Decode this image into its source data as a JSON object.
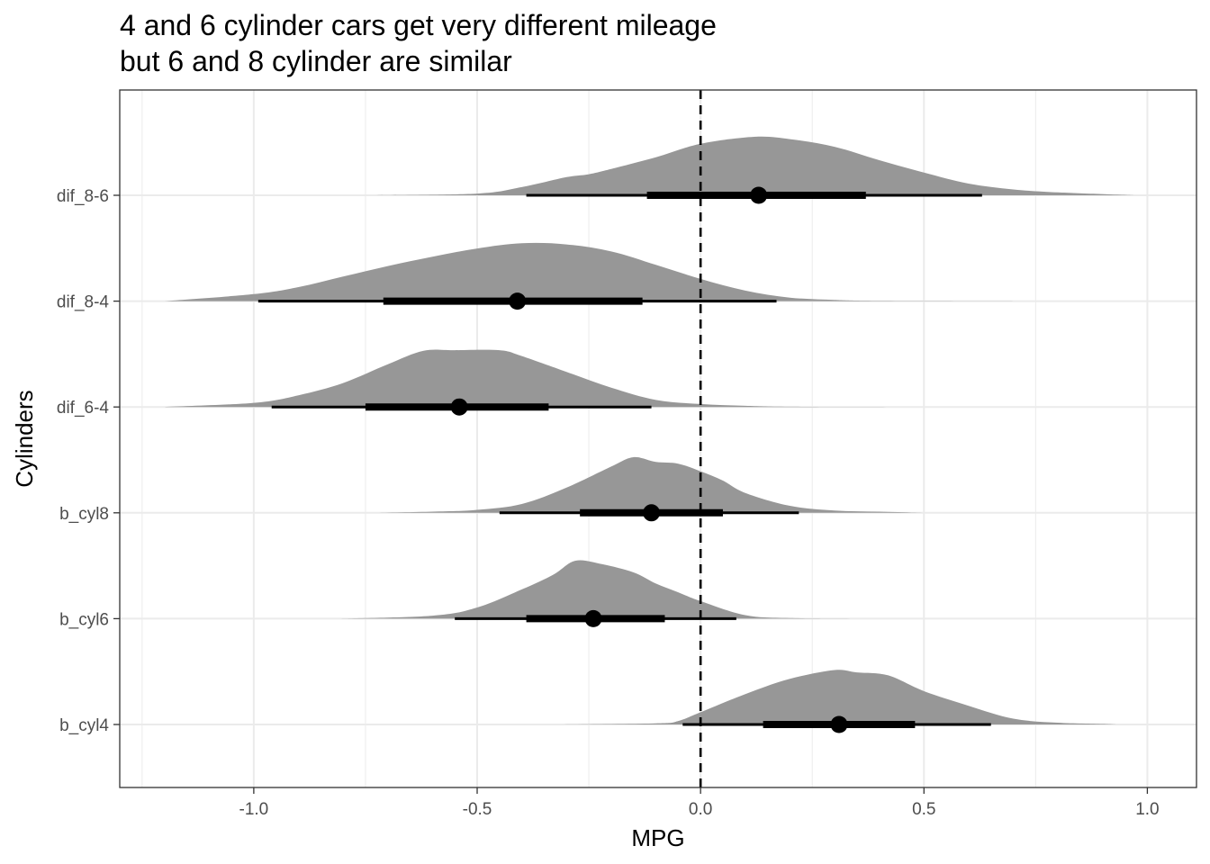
{
  "chart_data": {
    "type": "halfeye",
    "title_lines": [
      "4 and 6 cylinder cars get very different mileage",
      "but 6 and 8 cylinder are similar"
    ],
    "xlabel": "MPG",
    "ylabel": "Cylinders",
    "xlim": [
      -1.3,
      1.11
    ],
    "x_ticks": [
      -1.0,
      -0.5,
      0.0,
      0.5,
      1.0
    ],
    "x_tick_labels": [
      "-1.0",
      "-0.5",
      "0.0",
      "0.5",
      "1.0"
    ],
    "reference_line": {
      "x": 0.0,
      "style": "dashed"
    },
    "grid": true,
    "colors": {
      "density": "#979797",
      "interval": "#000000",
      "grid": "#ebebeb",
      "panel_border": "#333333"
    },
    "categories": [
      "dif_8-6",
      "dif_8-4",
      "dif_6-4",
      "b_cyl8",
      "b_cyl6",
      "b_cyl4"
    ],
    "series": [
      {
        "name": "dif_8-6",
        "point": 0.13,
        "interval_66": [
          -0.12,
          0.37
        ],
        "interval_95": [
          -0.39,
          0.63
        ],
        "density": [
          [
            -0.74,
            0
          ],
          [
            -0.5,
            0.03
          ],
          [
            -0.4,
            0.14
          ],
          [
            -0.3,
            0.31
          ],
          [
            -0.25,
            0.36
          ],
          [
            -0.2,
            0.45
          ],
          [
            -0.1,
            0.65
          ],
          [
            0.0,
            0.88
          ],
          [
            0.12,
            1.0
          ],
          [
            0.2,
            0.96
          ],
          [
            0.3,
            0.83
          ],
          [
            0.4,
            0.6
          ],
          [
            0.5,
            0.39
          ],
          [
            0.6,
            0.2
          ],
          [
            0.7,
            0.1
          ],
          [
            0.8,
            0.05
          ],
          [
            0.97,
            0
          ]
        ]
      },
      {
        "name": "dif_8-4",
        "point": -0.41,
        "interval_66": [
          -0.71,
          -0.13
        ],
        "interval_95": [
          -0.99,
          0.17
        ],
        "density": [
          [
            -1.2,
            0
          ],
          [
            -1.0,
            0.12
          ],
          [
            -0.9,
            0.24
          ],
          [
            -0.8,
            0.42
          ],
          [
            -0.7,
            0.6
          ],
          [
            -0.6,
            0.76
          ],
          [
            -0.5,
            0.9
          ],
          [
            -0.4,
            0.99
          ],
          [
            -0.3,
            0.97
          ],
          [
            -0.2,
            0.85
          ],
          [
            -0.1,
            0.62
          ],
          [
            0.0,
            0.38
          ],
          [
            0.1,
            0.18
          ],
          [
            0.2,
            0.06
          ],
          [
            0.3,
            0.02
          ],
          [
            0.4,
            0.005
          ],
          [
            0.7,
            0
          ]
        ]
      },
      {
        "name": "dif_6-4",
        "point": -0.54,
        "interval_66": [
          -0.75,
          -0.34
        ],
        "interval_95": [
          -0.96,
          -0.11
        ],
        "density": [
          [
            -1.2,
            0
          ],
          [
            -1.0,
            0.07
          ],
          [
            -0.9,
            0.2
          ],
          [
            -0.8,
            0.41
          ],
          [
            -0.7,
            0.73
          ],
          [
            -0.62,
            0.96
          ],
          [
            -0.55,
            0.97
          ],
          [
            -0.45,
            0.97
          ],
          [
            -0.4,
            0.87
          ],
          [
            -0.3,
            0.6
          ],
          [
            -0.2,
            0.33
          ],
          [
            -0.1,
            0.12
          ],
          [
            0.0,
            0.05
          ],
          [
            0.1,
            0.02
          ],
          [
            0.2,
            0.005
          ],
          [
            0.45,
            0
          ]
        ]
      },
      {
        "name": "b_cyl8",
        "point": -0.11,
        "interval_66": [
          -0.27,
          0.05
        ],
        "interval_95": [
          -0.45,
          0.22
        ],
        "density": [
          [
            -0.73,
            0
          ],
          [
            -0.6,
            0.02
          ],
          [
            -0.5,
            0.05
          ],
          [
            -0.4,
            0.15
          ],
          [
            -0.3,
            0.43
          ],
          [
            -0.2,
            0.79
          ],
          [
            -0.15,
            0.95
          ],
          [
            -0.1,
            0.87
          ],
          [
            -0.05,
            0.84
          ],
          [
            0.0,
            0.71
          ],
          [
            0.05,
            0.55
          ],
          [
            0.1,
            0.34
          ],
          [
            0.2,
            0.12
          ],
          [
            0.3,
            0.04
          ],
          [
            0.4,
            0.02
          ],
          [
            0.5,
            0
          ]
        ]
      },
      {
        "name": "b_cyl6",
        "point": -0.24,
        "interval_66": [
          -0.39,
          -0.08
        ],
        "interval_95": [
          -0.55,
          0.08
        ],
        "density": [
          [
            -0.81,
            0
          ],
          [
            -0.6,
            0.05
          ],
          [
            -0.5,
            0.19
          ],
          [
            -0.4,
            0.5
          ],
          [
            -0.33,
            0.75
          ],
          [
            -0.28,
            0.99
          ],
          [
            -0.22,
            0.93
          ],
          [
            -0.15,
            0.79
          ],
          [
            -0.1,
            0.6
          ],
          [
            -0.05,
            0.45
          ],
          [
            0.0,
            0.3
          ],
          [
            0.1,
            0.06
          ],
          [
            0.2,
            0.01
          ],
          [
            0.4,
            0
          ]
        ]
      },
      {
        "name": "b_cyl4",
        "point": 0.31,
        "interval_66": [
          0.14,
          0.48
        ],
        "interval_95": [
          -0.04,
          0.65
        ],
        "density": [
          [
            -0.33,
            0
          ],
          [
            -0.1,
            0.02
          ],
          [
            -0.05,
            0.06
          ],
          [
            0.0,
            0.21
          ],
          [
            0.1,
            0.52
          ],
          [
            0.2,
            0.78
          ],
          [
            0.3,
            0.93
          ],
          [
            0.35,
            0.89
          ],
          [
            0.42,
            0.84
          ],
          [
            0.5,
            0.57
          ],
          [
            0.6,
            0.32
          ],
          [
            0.7,
            0.1
          ],
          [
            0.8,
            0.03
          ],
          [
            0.9,
            0.01
          ],
          [
            0.93,
            0
          ]
        ]
      }
    ]
  }
}
